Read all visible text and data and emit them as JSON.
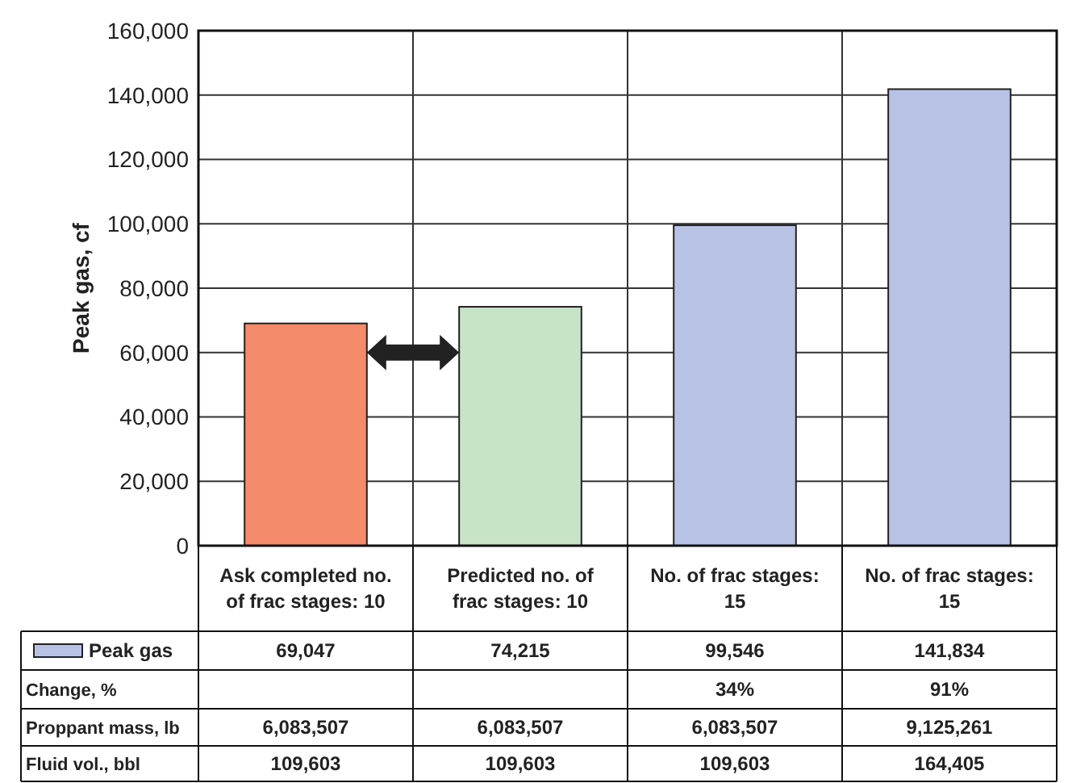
{
  "chart_data": {
    "type": "bar",
    "ylabel": "Peak gas, cf",
    "categories": [
      "Ask completed no. of frac stages: 10",
      "Predicted no. of frac stages: 10",
      "No. of frac stages: 15",
      "No. of frac stages: 15"
    ],
    "series": [
      {
        "name": "Peak gas",
        "color": "#b8c2e4",
        "colors": [
          "#f48c6c",
          "#c8e4c8",
          "#b8c2e4",
          "#b8c2e4"
        ],
        "values": [
          69047,
          74215,
          99546,
          141834
        ],
        "value_labels": [
          "69,047",
          "74,215",
          "99,546",
          "141,834"
        ]
      }
    ],
    "ylim": [
      0,
      160000
    ],
    "yticks": [
      {
        "value": 0,
        "label": "0"
      },
      {
        "value": 20000,
        "label": "20,000"
      },
      {
        "value": 40000,
        "label": "40,000"
      },
      {
        "value": 60000,
        "label": "60,000"
      },
      {
        "value": 80000,
        "label": "80,000"
      },
      {
        "value": 100000,
        "label": "100,000"
      },
      {
        "value": 120000,
        "label": "120,000"
      },
      {
        "value": 140000,
        "label": "140,000"
      },
      {
        "value": 160000,
        "label": "160,000"
      }
    ],
    "grid": true,
    "legend": "bottom left",
    "annotations": [
      "Change, %",
      "34%",
      "91%",
      "Proppant mass, lb",
      "6,083,507",
      "6,083,507",
      "6,083,507",
      "9,125,261",
      "Fluid vol., bbl",
      "109,603",
      "109,603",
      "109,603",
      "164,405"
    ]
  }
}
